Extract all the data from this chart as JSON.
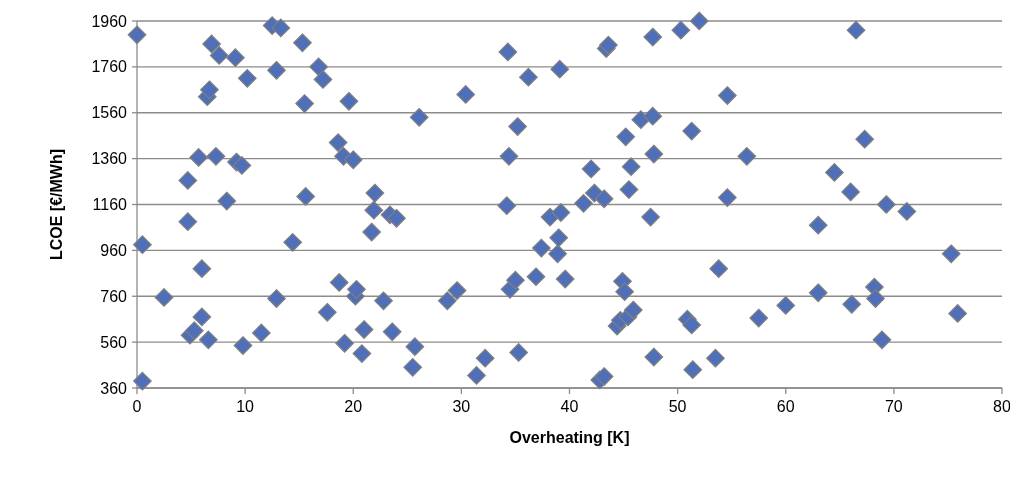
{
  "chart_data": {
    "type": "scatter",
    "xlabel": "Overheating [K]",
    "ylabel": "LCOE [€/MWh]",
    "xlim": [
      0,
      80
    ],
    "xticks": [
      0,
      10,
      20,
      30,
      40,
      50,
      60,
      70,
      80
    ],
    "ylim": [
      360,
      1960
    ],
    "yticks": [
      360,
      560,
      760,
      960,
      1160,
      1360,
      1560,
      1760,
      1960
    ],
    "grid": "y",
    "marker": "diamond",
    "series": [
      {
        "color": "#4f6fb8",
        "x": [
          0,
          0.5,
          0.5,
          2.5,
          4.7,
          4.7,
          4.9,
          5.3,
          5.7,
          6,
          6,
          6.5,
          6.7,
          6.6,
          6.9,
          7.3,
          7.6,
          8.3,
          9.1,
          9.2,
          9.7,
          9.8,
          10.2,
          11.5,
          12.5,
          12.9,
          12.9,
          13.3,
          14.4,
          15.3,
          15.5,
          15.6,
          16.8,
          17.2,
          17.6,
          18.6,
          18.7,
          19.1,
          19.2,
          19.6,
          20,
          20.2,
          20.3,
          20.8,
          21,
          21.7,
          21.9,
          22,
          22.8,
          23.4,
          23.6,
          24,
          25.5,
          25.7,
          26.1,
          28.7,
          29.6,
          30.4,
          31.4,
          32.2,
          34.2,
          34.3,
          34.4,
          34.5,
          35,
          35.2,
          35.3,
          36.2,
          36.9,
          37.4,
          38.2,
          38.9,
          39,
          39.1,
          39.2,
          39.6,
          41.3,
          42,
          42.3,
          42.8,
          43.2,
          43.2,
          43.4,
          43.6,
          44.4,
          44.7,
          44.9,
          45.1,
          45.2,
          45.4,
          45.5,
          45.7,
          45.9,
          46.6,
          47.5,
          47.7,
          47.7,
          47.8,
          47.8,
          50.3,
          50.9,
          51.3,
          51.3,
          51.4,
          52,
          53.5,
          53.8,
          54.6,
          54.6,
          56.4,
          57.5,
          60,
          63,
          63,
          64.5,
          66,
          66.1,
          66.5,
          67.3,
          68.2,
          68.3,
          68.9,
          69.3,
          71.2,
          75.3,
          75.9
        ],
        "values": [
          1900,
          985,
          390,
          755,
          1265,
          1085,
          590,
          610,
          1365,
          880,
          670,
          1630,
          1660,
          570,
          1860,
          1370,
          1810,
          1175,
          1800,
          1345,
          1330,
          545,
          1710,
          600,
          1940,
          1745,
          750,
          1930,
          995,
          1865,
          1600,
          1195,
          1760,
          1705,
          690,
          1430,
          820,
          1370,
          555,
          1610,
          1355,
          760,
          790,
          510,
          615,
          1040,
          1135,
          1210,
          740,
          1115,
          605,
          1100,
          450,
          540,
          1540,
          740,
          785,
          1640,
          415,
          490,
          1155,
          1825,
          1370,
          790,
          830,
          1500,
          515,
          1715,
          845,
          970,
          1105,
          945,
          1015,
          1750,
          1125,
          835,
          1165,
          1315,
          1210,
          395,
          1185,
          410,
          1840,
          1855,
          630,
          655,
          825,
          780,
          1455,
          670,
          1225,
          1325,
          700,
          1530,
          1105,
          1890,
          1545,
          1380,
          495,
          1920,
          660,
          1480,
          635,
          440,
          1960,
          490,
          880,
          1190,
          1635,
          1370,
          665,
          720,
          1070,
          775,
          1300,
          1215,
          725,
          1920,
          1445,
          800,
          750,
          570,
          1160,
          1130,
          945,
          685
        ]
      }
    ]
  }
}
